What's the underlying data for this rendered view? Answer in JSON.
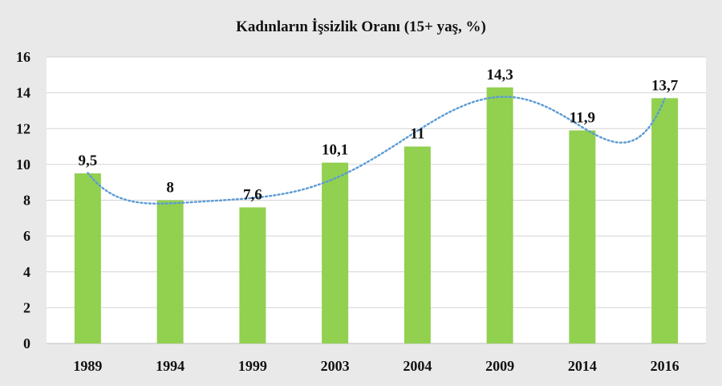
{
  "chart_data": {
    "type": "bar",
    "title": "Kadınların İşsizlik Oranı (15+ yaş, %)",
    "xlabel": "",
    "ylabel": "",
    "categories": [
      "1989",
      "1994",
      "1999",
      "2003",
      "2004",
      "2009",
      "2014",
      "2016"
    ],
    "values": [
      9.5,
      8,
      7.6,
      10.1,
      11,
      14.3,
      11.9,
      13.7
    ],
    "data_labels": [
      "9,5",
      "8",
      "7,6",
      "10,1",
      "11",
      "14,3",
      "11,9",
      "13,7"
    ],
    "ylim": [
      0,
      16
    ],
    "yticks": [
      0,
      2,
      4,
      6,
      8,
      10,
      12,
      14,
      16
    ],
    "grid": true,
    "legend": "none",
    "trendline": {
      "type": "polynomial",
      "style": "dotted"
    },
    "colors": {
      "bar": "#92d050",
      "trendline": "#5b9bd5",
      "grid": "#d4d4d4",
      "plot_background": "#ffffff",
      "page_background": "#e9e9e9"
    }
  }
}
